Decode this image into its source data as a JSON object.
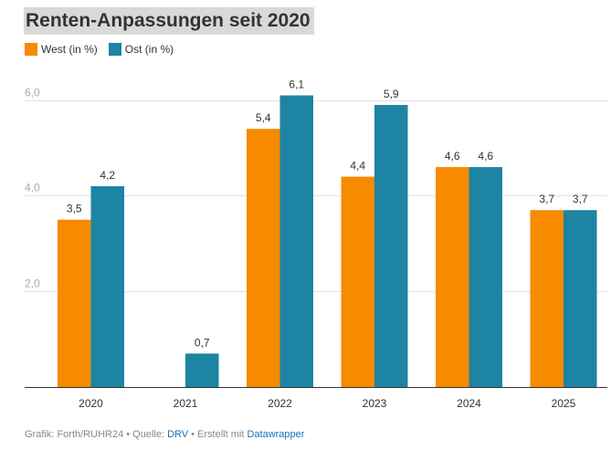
{
  "title": "Renten-Anpassungen seit 2020",
  "colors": {
    "west": "#f78b00",
    "ost": "#1e84a3"
  },
  "footer": {
    "prefix": "Grafik: Forth/RUHR24 • Quelle: ",
    "source": "DRV",
    "middle": " • Erstellt mit ",
    "tool": "Datawrapper"
  },
  "chart_data": {
    "type": "bar",
    "categories": [
      "2020",
      "2021",
      "2022",
      "2023",
      "2024",
      "2025"
    ],
    "series": [
      {
        "name": "West (in %)",
        "values": [
          3.5,
          null,
          5.4,
          4.4,
          4.6,
          3.7
        ],
        "labels": [
          "3,5",
          "",
          "5,4",
          "4,4",
          "4,6",
          "3,7"
        ]
      },
      {
        "name": "Ost (in %)",
        "values": [
          4.2,
          0.7,
          6.1,
          5.9,
          4.6,
          3.7
        ],
        "labels": [
          "4,2",
          "0,7",
          "6,1",
          "5,9",
          "4,6",
          "3,7"
        ]
      }
    ],
    "yticks": [
      2,
      4,
      6
    ],
    "ytick_labels": [
      "2,0",
      "4,0",
      "6,0"
    ],
    "ylim": [
      0,
      6.1
    ],
    "grid": true,
    "legend": "top-left"
  }
}
